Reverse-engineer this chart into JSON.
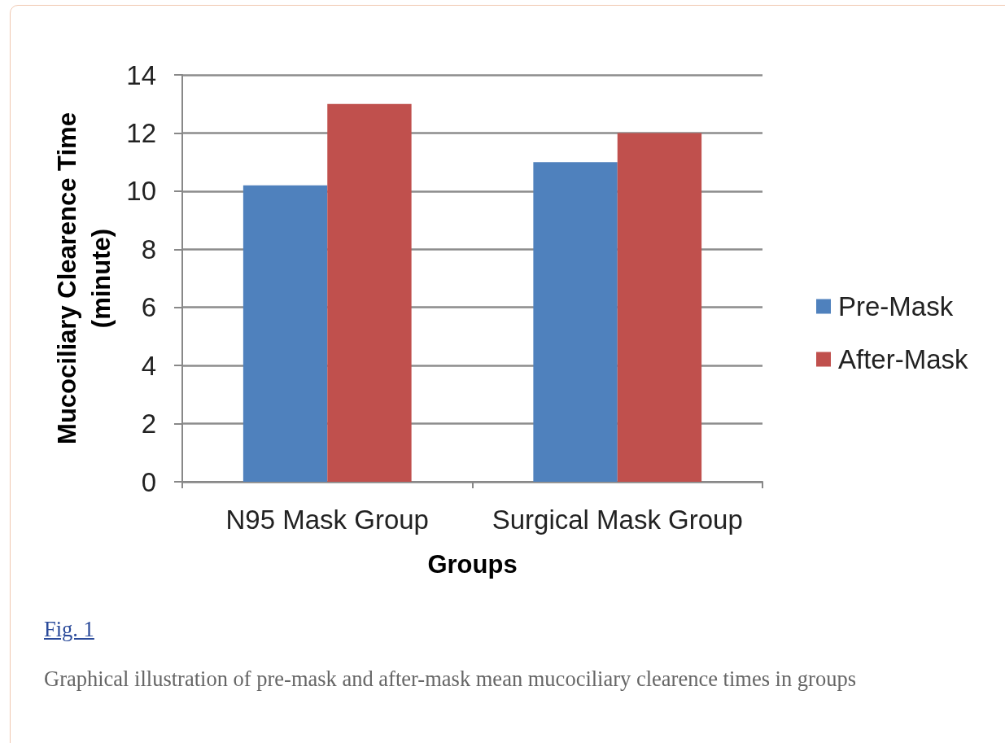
{
  "chart_data": {
    "type": "bar",
    "categories": [
      "N95 Mask Group",
      "Surgical Mask Group"
    ],
    "series": [
      {
        "name": "Pre-Mask",
        "color": "#4f81bd",
        "values": [
          10.2,
          11
        ]
      },
      {
        "name": "After-Mask",
        "color": "#c0504d",
        "values": [
          13,
          12
        ]
      }
    ],
    "xlabel": "Groups",
    "ylabel": "Mucociliary Clearence Time (minute)",
    "ylim": [
      0,
      14
    ],
    "yticks": [
      0,
      2,
      4,
      6,
      8,
      10,
      12,
      14
    ],
    "grid": "y",
    "legend": "right",
    "annotations": [
      "Fig. 1",
      "Graphical illustration of pre-mask and after-mask mean mucociliary clearence times in groups"
    ]
  }
}
